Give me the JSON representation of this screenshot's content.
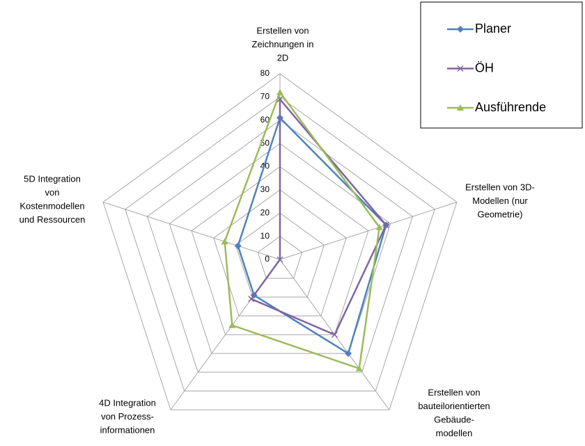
{
  "chart_data": {
    "type": "radar",
    "categories": [
      [
        "Erstellen von",
        "Zeichnungen in",
        "2D"
      ],
      [
        "Erstellen von 3D-",
        "Modellen (nur",
        "Geometrie)"
      ],
      [
        "Erstellen von",
        "bauteilorientierten",
        "Gebäude-",
        "modellen"
      ],
      [
        "4D Integration",
        "von Prozess-",
        "informationen"
      ],
      [
        "5D Integration",
        "von",
        "Kostenmodellen",
        "und Ressourcen"
      ]
    ],
    "series": [
      {
        "name": "Planer",
        "color": "#4f81bd",
        "marker": "diamond",
        "values": [
          61,
          48,
          50,
          19,
          19
        ]
      },
      {
        "name": "ÖH",
        "color": "#8064a2",
        "marker": "x",
        "values": [
          69,
          48,
          40,
          21,
          0
        ]
      },
      {
        "name": "Ausführende",
        "color": "#9bbb59",
        "marker": "triangle",
        "values": [
          72,
          45,
          58,
          35,
          25
        ]
      }
    ],
    "ylim": [
      0,
      80
    ],
    "yticks": [
      0,
      10,
      20,
      30,
      40,
      50,
      60,
      70,
      80
    ],
    "grid": true,
    "legend": "top-right"
  }
}
